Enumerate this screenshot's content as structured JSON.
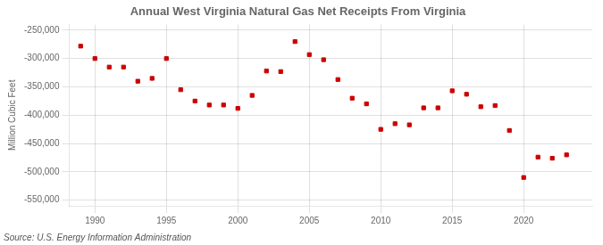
{
  "chart_data": {
    "type": "scatter",
    "title": "Annual West Virginia Natural Gas Net Receipts From Virginia",
    "y_label": "Million Cubic Feet",
    "annotations": [
      "Source: U.S. Energy Information Administration"
    ],
    "x": [
      1989,
      1990,
      1991,
      1992,
      1993,
      1994,
      1995,
      1996,
      1997,
      1998,
      1999,
      2000,
      2001,
      2002,
      2003,
      2004,
      2005,
      2006,
      2007,
      2008,
      2009,
      2010,
      2011,
      2012,
      2013,
      2014,
      2015,
      2016,
      2017,
      2018,
      2019,
      2020,
      2021,
      2022,
      2023
    ],
    "values": [
      -278000,
      -300000,
      -315000,
      -315000,
      -340000,
      -335000,
      -300000,
      -355000,
      -375000,
      -382000,
      -382000,
      -388000,
      -365000,
      -322000,
      -323000,
      -270000,
      -293000,
      -302000,
      -337000,
      -370000,
      -380000,
      -425000,
      -415000,
      -417000,
      -387000,
      -387000,
      -357000,
      -363000,
      -385000,
      -383000,
      -427000,
      -510000,
      -474000,
      -476000,
      -470000
    ],
    "color": "#cc0000",
    "marker": "square",
    "xlim": [
      1988.2,
      2024.8
    ],
    "xticks": [
      1990,
      1995,
      2000,
      2005,
      2010,
      2015,
      2020
    ],
    "ylim": [
      -560000,
      -240000
    ],
    "yticks": [
      {
        "value": -550000,
        "label": "-550,000"
      },
      {
        "value": -500000,
        "label": "-500,000"
      },
      {
        "value": -450000,
        "label": "-450,000"
      },
      {
        "value": -400000,
        "label": "-400,000"
      },
      {
        "value": -350000,
        "label": "-350,000"
      },
      {
        "value": -300000,
        "label": "-300,000"
      },
      {
        "value": -250000,
        "label": "-250,000"
      }
    ],
    "grid": true
  }
}
